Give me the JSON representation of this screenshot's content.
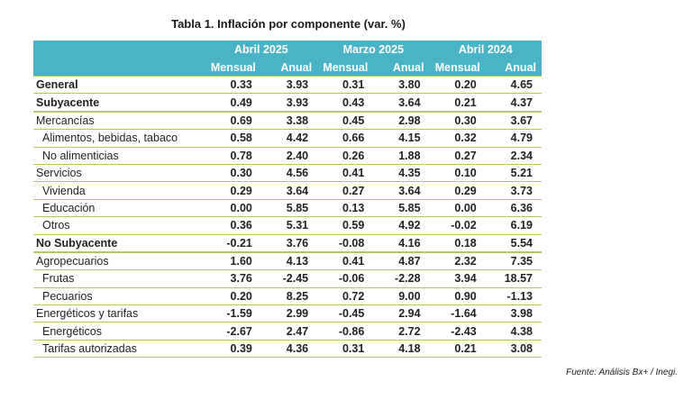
{
  "title": "Tabla 1. Inflación por componente (var. %)",
  "columns": {
    "groups": [
      "Abril 2025",
      "Marzo 2025",
      "Abril 2024"
    ],
    "sub": [
      "Mensual",
      "Anual",
      "Mensual",
      "Anual",
      "Mensual",
      "Anual"
    ]
  },
  "rows": [
    {
      "label": "General",
      "values": [
        "0.33",
        "3.93",
        "0.31",
        "3.80",
        "0.20",
        "4.65"
      ]
    },
    {
      "label": "Subyacente",
      "values": [
        "0.49",
        "3.93",
        "0.43",
        "3.64",
        "0.21",
        "4.37"
      ]
    },
    {
      "label": "Mercancías",
      "values": [
        "0.69",
        "3.38",
        "0.45",
        "2.98",
        "0.30",
        "3.67"
      ]
    },
    {
      "label": "Alimentos, bebidas, tabaco",
      "values": [
        "0.58",
        "4.42",
        "0.66",
        "4.15",
        "0.32",
        "4.79"
      ]
    },
    {
      "label": "No alimenticias",
      "values": [
        "0.78",
        "2.40",
        "0.26",
        "1.88",
        "0.27",
        "2.34"
      ]
    },
    {
      "label": "Servicios",
      "values": [
        "0.30",
        "4.56",
        "0.41",
        "4.35",
        "0.10",
        "5.21"
      ]
    },
    {
      "label": "Vivienda",
      "values": [
        "0.29",
        "3.64",
        "0.27",
        "3.64",
        "0.29",
        "3.73"
      ]
    },
    {
      "label": "Educación",
      "values": [
        "0.00",
        "5.85",
        "0.13",
        "5.85",
        "0.00",
        "6.36"
      ]
    },
    {
      "label": "Otros",
      "values": [
        "0.36",
        "5.31",
        "0.59",
        "4.92",
        "-0.02",
        "6.19"
      ]
    },
    {
      "label": "No Subyacente",
      "values": [
        "-0.21",
        "3.76",
        "-0.08",
        "4.16",
        "0.18",
        "5.54"
      ]
    },
    {
      "label": "Agropecuarios",
      "values": [
        "1.60",
        "4.13",
        "0.41",
        "4.87",
        "2.32",
        "7.35"
      ]
    },
    {
      "label": "Frutas",
      "values": [
        "3.76",
        "-2.45",
        "-0.06",
        "-2.28",
        "3.94",
        "18.57"
      ]
    },
    {
      "label": "Pecuarios",
      "values": [
        "0.20",
        "8.25",
        "0.72",
        "9.00",
        "0.90",
        "-1.13"
      ]
    },
    {
      "label": "Energéticos y tarifas",
      "values": [
        "-1.59",
        "2.99",
        "-0.45",
        "2.94",
        "-1.64",
        "3.98"
      ]
    },
    {
      "label": "Energéticos",
      "values": [
        "-2.67",
        "2.47",
        "-0.86",
        "2.72",
        "-2.43",
        "4.38"
      ]
    },
    {
      "label": "Tarifas autorizadas",
      "values": [
        "0.39",
        "4.36",
        "0.31",
        "4.18",
        "0.21",
        "3.08"
      ]
    }
  ],
  "source": "Fuente: Análisis Bx+ / Inegi.",
  "colors": {
    "header_bg": "#4bb3c6",
    "rule": "#b9c85a"
  }
}
